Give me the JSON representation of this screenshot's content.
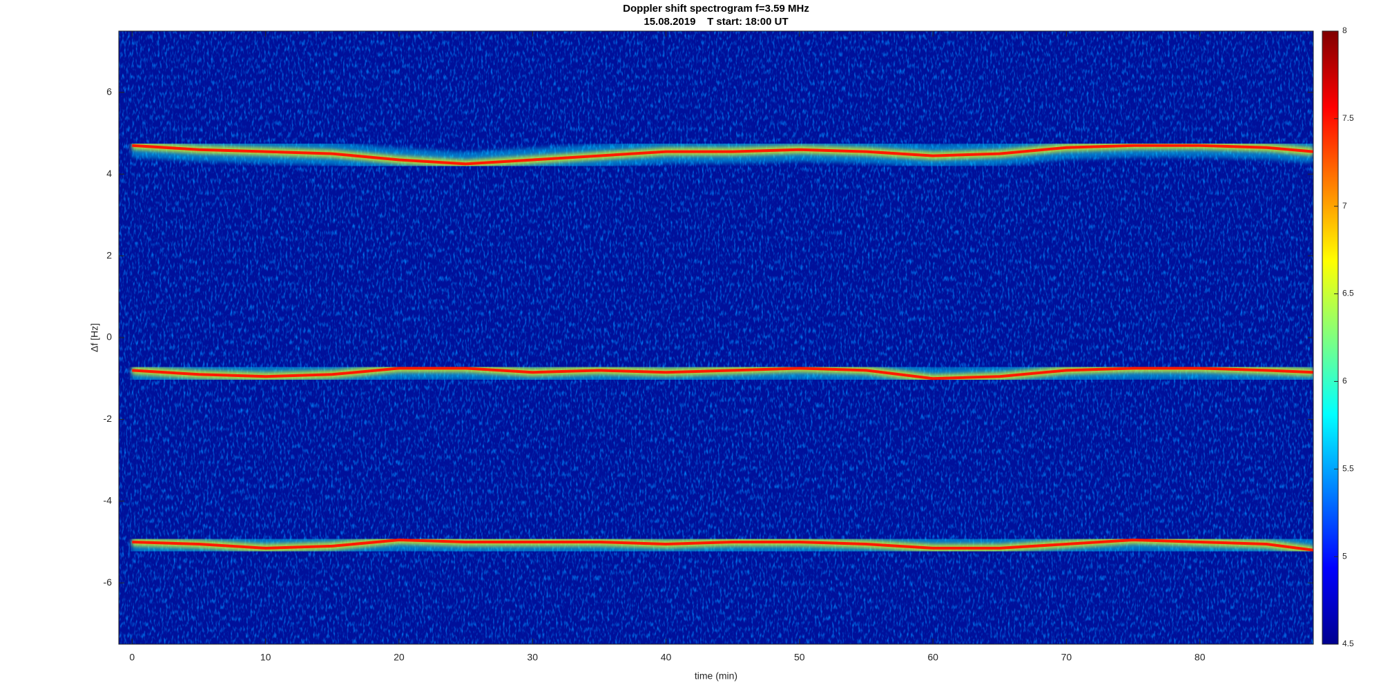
{
  "chart_data": {
    "type": "spectrogram",
    "title": "Doppler shift spectrogram f=3.59 MHz",
    "subtitle": "15.08.2019    T start: 18:00 UT",
    "x_label": "time (min)",
    "y_label": "Δf [Hz]",
    "xlim": [
      -1,
      88.5
    ],
    "xticks": [
      0,
      10,
      20,
      30,
      40,
      50,
      60,
      70,
      80
    ],
    "ylim": [
      -7.5,
      7.5
    ],
    "yticks": [
      -6,
      -4,
      -2,
      0,
      2,
      4,
      6
    ],
    "x": [
      0,
      5,
      10,
      15,
      20,
      25,
      30,
      35,
      40,
      45,
      50,
      55,
      60,
      65,
      70,
      75,
      80,
      85,
      88.5
    ],
    "series": [
      {
        "color": "#ff1a00",
        "values": [
          4.7,
          4.6,
          4.55,
          4.5,
          4.35,
          4.25,
          4.35,
          4.45,
          4.55,
          4.55,
          4.6,
          4.55,
          4.45,
          4.5,
          4.65,
          4.7,
          4.7,
          4.65,
          4.55
        ]
      },
      {
        "color": "#ff1a00",
        "values": [
          -0.8,
          -0.9,
          -0.95,
          -0.9,
          -0.75,
          -0.75,
          -0.85,
          -0.8,
          -0.85,
          -0.8,
          -0.75,
          -0.8,
          -1.0,
          -0.95,
          -0.8,
          -0.75,
          -0.75,
          -0.8,
          -0.85
        ]
      },
      {
        "color": "#ff1a00",
        "values": [
          -5.0,
          -5.05,
          -5.15,
          -5.1,
          -4.95,
          -5.0,
          -5.0,
          -5.0,
          -5.05,
          -5.0,
          -5.0,
          -5.05,
          -5.15,
          -5.15,
          -5.05,
          -4.95,
          -5.0,
          -5.05,
          -5.2
        ]
      }
    ],
    "colorbar": {
      "lim": [
        4.5,
        8
      ],
      "ticks": [
        4.5,
        5,
        5.5,
        6,
        6.5,
        7,
        7.5,
        8
      ]
    }
  }
}
